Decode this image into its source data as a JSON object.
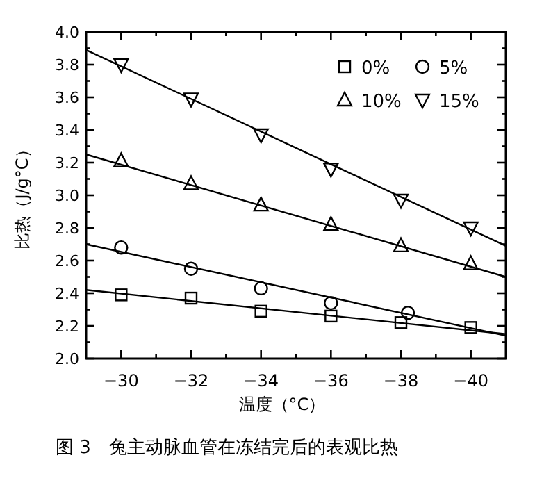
{
  "chart_data": {
    "type": "scatter",
    "xlabel": "温度（°C）",
    "ylabel": "比热（J/g°C）",
    "annotations": [
      "图 3　兔主动脉血管在冻结完后的表观比热"
    ],
    "x": [
      -30,
      -32,
      -34,
      -36,
      -38,
      -40
    ],
    "xlim": [
      -29,
      -41
    ],
    "ylim": [
      2.0,
      4.0
    ],
    "xticks": [
      {
        "value": -30,
        "label": "−30"
      },
      {
        "value": -31,
        "label": null
      },
      {
        "value": -32,
        "label": "−32"
      },
      {
        "value": -33,
        "label": null
      },
      {
        "value": -34,
        "label": "−34"
      },
      {
        "value": -35,
        "label": null
      },
      {
        "value": -36,
        "label": "−36"
      },
      {
        "value": -37,
        "label": null
      },
      {
        "value": -38,
        "label": "−38"
      },
      {
        "value": -39,
        "label": null
      },
      {
        "value": -40,
        "label": "−40"
      }
    ],
    "yticks": [
      {
        "value": 2.0,
        "label": "2.0"
      },
      {
        "value": 2.1,
        "label": null
      },
      {
        "value": 2.2,
        "label": "2.2"
      },
      {
        "value": 2.3,
        "label": null
      },
      {
        "value": 2.4,
        "label": "2.4"
      },
      {
        "value": 2.5,
        "label": null
      },
      {
        "value": 2.6,
        "label": "2.6"
      },
      {
        "value": 2.7,
        "label": null
      },
      {
        "value": 2.8,
        "label": "2.8"
      },
      {
        "value": 2.9,
        "label": null
      },
      {
        "value": 3.0,
        "label": "3.0"
      },
      {
        "value": 3.1,
        "label": null
      },
      {
        "value": 3.2,
        "label": "3.2"
      },
      {
        "value": 3.3,
        "label": null
      },
      {
        "value": 3.4,
        "label": "3.4"
      },
      {
        "value": 3.5,
        "label": null
      },
      {
        "value": 3.6,
        "label": "3.6"
      },
      {
        "value": 3.7,
        "label": null
      },
      {
        "value": 3.8,
        "label": "3.8"
      },
      {
        "value": 3.9,
        "label": null
      },
      {
        "value": 4.0,
        "label": "4.0"
      }
    ],
    "grid": false,
    "legend": "top right",
    "series": [
      {
        "name": "0%",
        "color": "#000000",
        "marker": "square",
        "values": [
          2.39,
          2.37,
          2.29,
          2.26,
          2.22,
          2.19
        ]
      },
      {
        "name": "5%",
        "color": "#000000",
        "marker": "circle",
        "x": [
          -30,
          -32,
          -34,
          -36,
          -38.2
        ],
        "values": [
          2.68,
          2.55,
          2.43,
          2.34,
          2.28
        ]
      },
      {
        "name": "10%",
        "color": "#000000",
        "marker": "triangle",
        "values": [
          3.21,
          3.07,
          2.94,
          2.82,
          2.69,
          2.58
        ]
      },
      {
        "name": "15%",
        "color": "#000000",
        "marker": "triangle-down",
        "values": [
          3.8,
          3.59,
          3.37,
          3.16,
          2.97,
          2.8
        ]
      },
      {
        "type": "line",
        "color": "#000000",
        "x": [
          -29,
          -41
        ],
        "values": [
          2.42,
          2.15
        ]
      },
      {
        "type": "line",
        "color": "#000000",
        "x": [
          -29,
          -41
        ],
        "values": [
          2.7,
          2.14
        ]
      },
      {
        "type": "line",
        "color": "#000000",
        "x": [
          -29,
          -41
        ],
        "values": [
          3.25,
          2.5
        ]
      },
      {
        "type": "line",
        "color": "#000000",
        "x": [
          -29,
          -41
        ],
        "values": [
          3.89,
          2.69
        ]
      }
    ]
  }
}
